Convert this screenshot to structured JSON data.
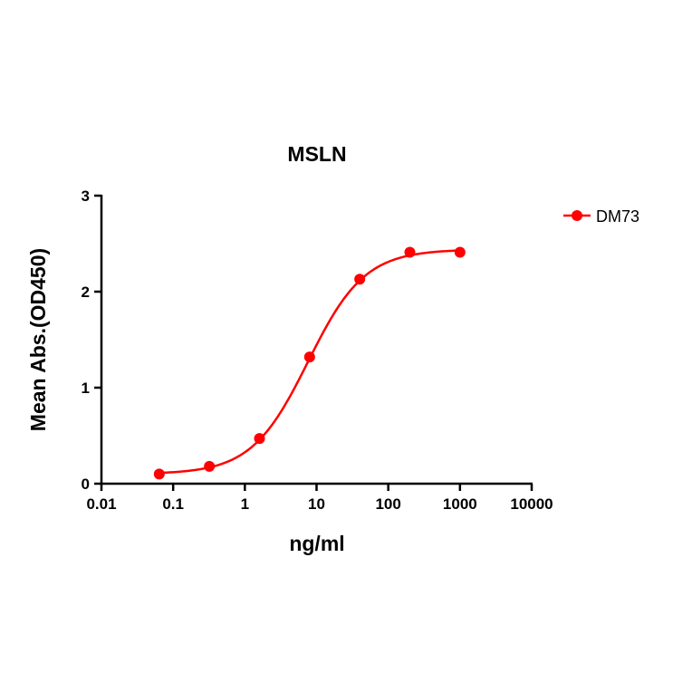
{
  "chart_data": {
    "type": "line",
    "title": "MSLN",
    "xlabel": "ng/ml",
    "ylabel": "Mean Abs.(OD450)",
    "xscale": "log",
    "xlim": [
      0.01,
      10000
    ],
    "ylim": [
      0,
      3
    ],
    "xticks": [
      "0.01",
      "0.1",
      "1",
      "10",
      "100",
      "1000",
      "10000"
    ],
    "yticks": [
      "0",
      "1",
      "2",
      "3"
    ],
    "grid": false,
    "legend_position": "top-right",
    "series": [
      {
        "name": "DM73",
        "color": "#ff0000",
        "x": [
          0.064,
          0.32,
          1.6,
          8,
          40,
          200,
          1000
        ],
        "y": [
          0.1,
          0.18,
          0.47,
          1.32,
          2.13,
          2.41,
          2.41
        ],
        "fit": "sigmoidal curve"
      }
    ]
  }
}
